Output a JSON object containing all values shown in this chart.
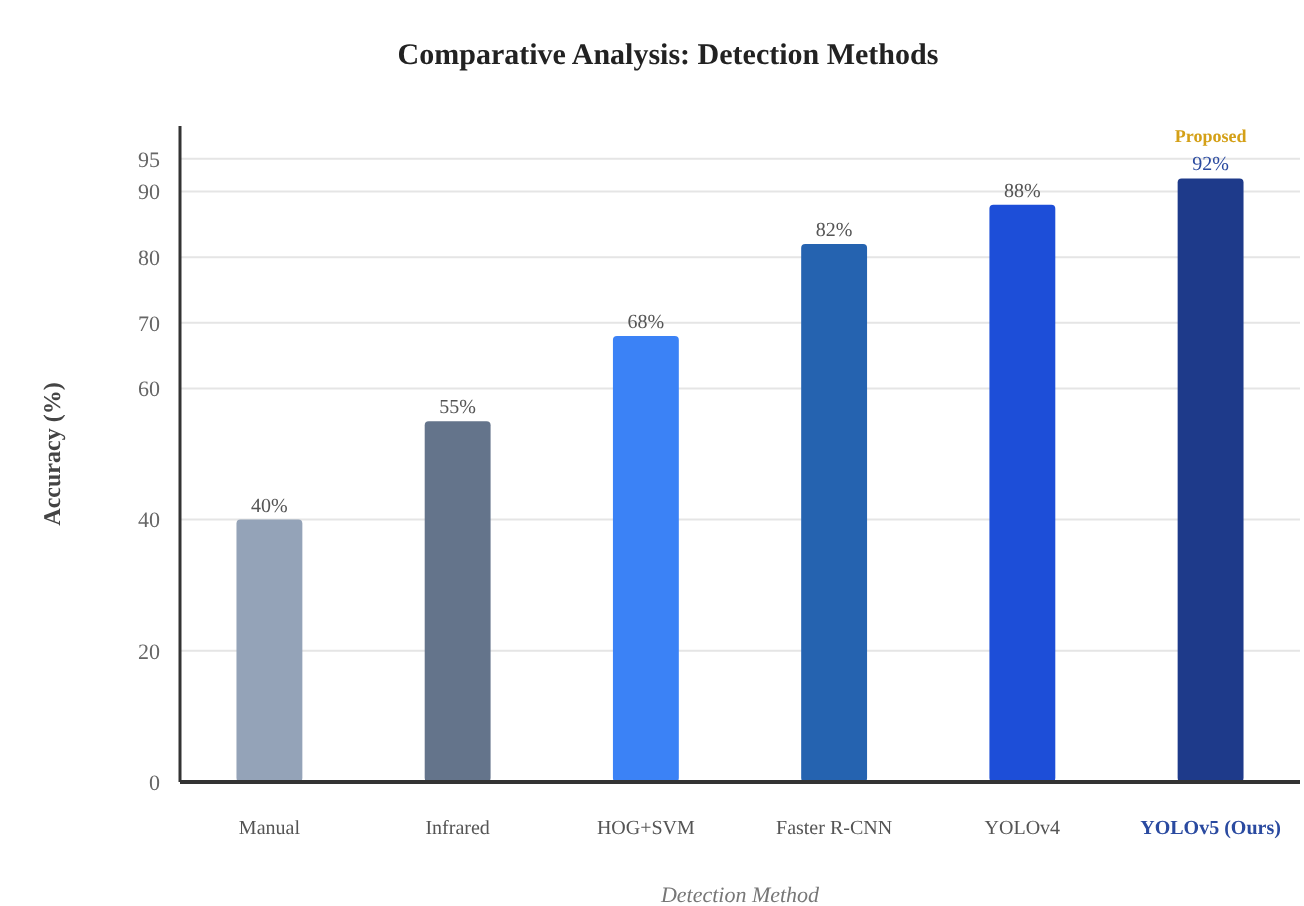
{
  "chart_data": {
    "type": "bar",
    "title": "Comparative Analysis: Detection Methods",
    "xlabel": "Detection Method",
    "ylabel": "Accuracy (%)",
    "categories": [
      "Manual",
      "Infrared",
      "HOG+SVM",
      "Faster R-CNN",
      "YOLOv4",
      "YOLOv5 (Ours)"
    ],
    "values": [
      40,
      55,
      68,
      82,
      88,
      92
    ],
    "colors": [
      "#94a3b8",
      "#64748b",
      "#3b82f6",
      "#2563b0",
      "#1d4ed8",
      "#1e3a8a"
    ],
    "value_labels": [
      "40%",
      "55%",
      "68%",
      "82%",
      "88%",
      "92%"
    ],
    "ylim": [
      0,
      100
    ],
    "yticks": [
      0,
      20,
      40,
      60,
      70,
      80,
      90,
      95
    ],
    "grid": "y",
    "annotations": [
      {
        "text": "Proposed",
        "x": "YOLOv5 (Ours)",
        "y": 92
      }
    ]
  }
}
